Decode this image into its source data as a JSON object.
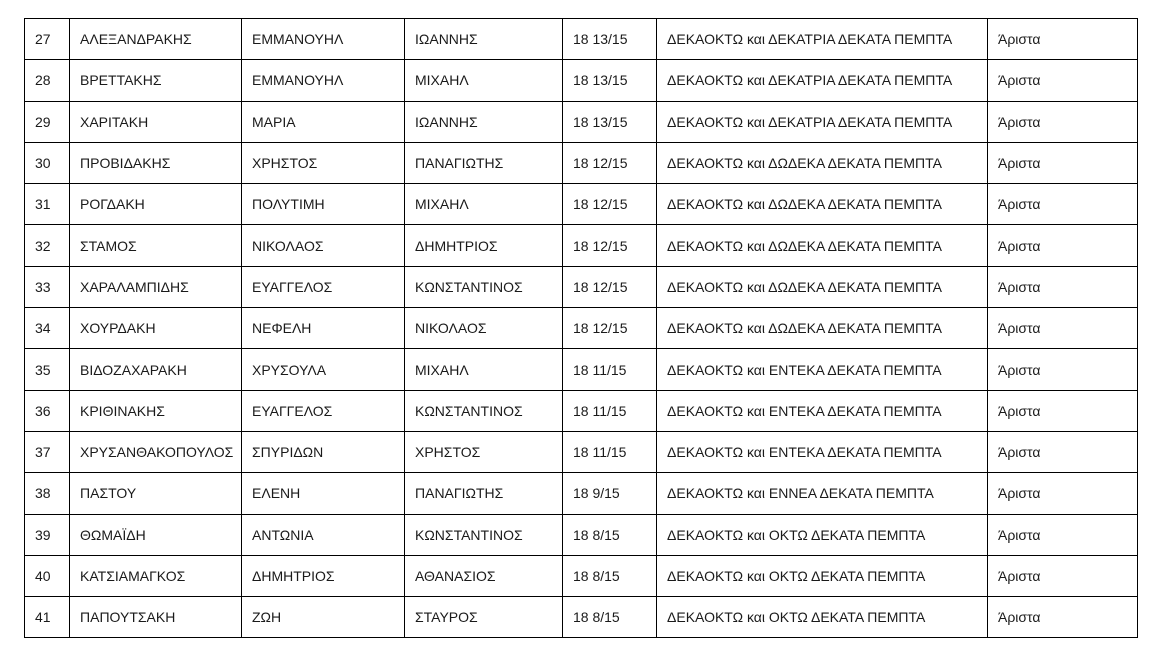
{
  "rows": [
    [
      "27",
      "ΑΛΕΞΑΝΔΡΑΚΗΣ",
      "ΕΜΜΑΝΟΥΗΛ",
      "ΙΩΑΝΝΗΣ",
      "18 13/15",
      "ΔΕΚΑΟΚΤΩ και ΔΕΚΑΤΡΙΑ ΔΕΚΑΤΑ ΠΕΜΠΤΑ",
      "Άριστα"
    ],
    [
      "28",
      "ΒΡΕΤΤΑΚΗΣ",
      "ΕΜΜΑΝΟΥΗΛ",
      "ΜΙΧΑΗΛ",
      "18 13/15",
      "ΔΕΚΑΟΚΤΩ και ΔΕΚΑΤΡΙΑ ΔΕΚΑΤΑ ΠΕΜΠΤΑ",
      "Άριστα"
    ],
    [
      "29",
      "ΧΑΡΙΤΑΚΗ",
      "ΜΑΡΙΑ",
      "ΙΩΑΝΝΗΣ",
      "18 13/15",
      "ΔΕΚΑΟΚΤΩ και ΔΕΚΑΤΡΙΑ ΔΕΚΑΤΑ ΠΕΜΠΤΑ",
      "Άριστα"
    ],
    [
      "30",
      "ΠΡΟΒΙΔΑΚΗΣ",
      "ΧΡΗΣΤΟΣ",
      "ΠΑΝΑΓΙΩΤΗΣ",
      "18 12/15",
      "ΔΕΚΑΟΚΤΩ και ΔΩΔΕΚΑ ΔΕΚΑΤΑ ΠΕΜΠΤΑ",
      "Άριστα"
    ],
    [
      "31",
      "ΡΟΓΔΑΚΗ",
      "ΠΟΛΥΤΙΜΗ",
      "ΜΙΧΑΗΛ",
      "18 12/15",
      "ΔΕΚΑΟΚΤΩ και ΔΩΔΕΚΑ ΔΕΚΑΤΑ ΠΕΜΠΤΑ",
      "Άριστα"
    ],
    [
      "32",
      "ΣΤΑΜΟΣ",
      "ΝΙΚΟΛΑΟΣ",
      "ΔΗΜΗΤΡΙΟΣ",
      "18 12/15",
      "ΔΕΚΑΟΚΤΩ και ΔΩΔΕΚΑ ΔΕΚΑΤΑ ΠΕΜΠΤΑ",
      "Άριστα"
    ],
    [
      "33",
      "ΧΑΡΑΛΑΜΠΙΔΗΣ",
      "ΕΥΑΓΓΕΛΟΣ",
      "ΚΩΝΣΤΑΝΤΙΝΟΣ",
      "18 12/15",
      "ΔΕΚΑΟΚΤΩ και ΔΩΔΕΚΑ ΔΕΚΑΤΑ ΠΕΜΠΤΑ",
      "Άριστα"
    ],
    [
      "34",
      "ΧΟΥΡΔΑΚΗ",
      "ΝΕΦΕΛΗ",
      "ΝΙΚΟΛΑΟΣ",
      "18 12/15",
      "ΔΕΚΑΟΚΤΩ και ΔΩΔΕΚΑ ΔΕΚΑΤΑ ΠΕΜΠΤΑ",
      "Άριστα"
    ],
    [
      "35",
      "ΒΙΔΟΖΑΧΑΡΑΚΗ",
      "ΧΡΥΣΟΥΛΑ",
      "ΜΙΧΑΗΛ",
      "18 11/15",
      "ΔΕΚΑΟΚΤΩ και ΕΝΤΕΚΑ ΔΕΚΑΤΑ ΠΕΜΠΤΑ",
      "Άριστα"
    ],
    [
      "36",
      "ΚΡΙΘΙΝΑΚΗΣ",
      "ΕΥΑΓΓΕΛΟΣ",
      "ΚΩΝΣΤΑΝΤΙΝΟΣ",
      "18 11/15",
      "ΔΕΚΑΟΚΤΩ και ΕΝΤΕΚΑ ΔΕΚΑΤΑ ΠΕΜΠΤΑ",
      "Άριστα"
    ],
    [
      "37",
      "ΧΡΥΣΑΝΘΑΚΟΠΟΥΛΟΣ",
      "ΣΠΥΡΙΔΩΝ",
      "ΧΡΗΣΤΟΣ",
      "18 11/15",
      "ΔΕΚΑΟΚΤΩ και ΕΝΤΕΚΑ ΔΕΚΑΤΑ ΠΕΜΠΤΑ",
      "Άριστα"
    ],
    [
      "38",
      "ΠΑΣΤΟΥ",
      "ΕΛΕΝΗ",
      "ΠΑΝΑΓΙΩΤΗΣ",
      "18 9/15",
      "ΔΕΚΑΟΚΤΩ και ΕΝΝΕΑ ΔΕΚΑΤΑ ΠΕΜΠΤΑ",
      "Άριστα"
    ],
    [
      "39",
      "ΘΩΜΑΪΔΗ",
      "ΑΝΤΩΝΙΑ",
      "ΚΩΝΣΤΑΝΤΙΝΟΣ",
      "18 8/15",
      "ΔΕΚΑΟΚΤΩ και ΟΚΤΩ ΔΕΚΑΤΑ ΠΕΜΠΤΑ",
      "Άριστα"
    ],
    [
      "40",
      "ΚΑΤΣΙΑΜΑΓΚΟΣ",
      "ΔΗΜΗΤΡΙΟΣ",
      "ΑΘΑΝΑΣΙΟΣ",
      "18 8/15",
      "ΔΕΚΑΟΚΤΩ και ΟΚΤΩ ΔΕΚΑΤΑ ΠΕΜΠΤΑ",
      "Άριστα"
    ],
    [
      "41",
      "ΠΑΠΟΥΤΣΑΚΗ",
      "ΖΩΗ",
      "ΣΤΑΥΡΟΣ",
      "18 8/15",
      "ΔΕΚΑΟΚΤΩ και ΟΚΤΩ ΔΕΚΑΤΑ ΠΕΜΠΤΑ",
      "Άριστα"
    ]
  ]
}
